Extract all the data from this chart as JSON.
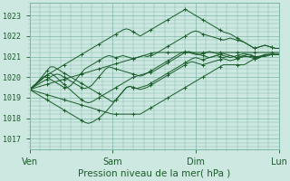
{
  "bg_color": "#cce8e0",
  "grid_color": "#7db5aa",
  "line_color": "#1a5c2a",
  "marker_color": "#1a5c2a",
  "xlabel": "Pression niveau de la mer( hPa )",
  "xlabel_fontsize": 7.5,
  "yticks": [
    1017,
    1018,
    1019,
    1020,
    1021,
    1022,
    1023
  ],
  "xtick_labels": [
    "Ven",
    "Sam",
    "Dim",
    "Lun"
  ],
  "xtick_positions": [
    0,
    1,
    2,
    3
  ],
  "ylim": [
    1016.5,
    1023.6
  ],
  "xlim": [
    0.0,
    3.0
  ],
  "n_points": 73,
  "series": [
    [
      1019.4,
      1019.45,
      1019.5,
      1019.55,
      1019.6,
      1019.65,
      1019.7,
      1019.75,
      1019.8,
      1019.85,
      1019.9,
      1019.95,
      1020.0,
      1020.05,
      1020.1,
      1020.15,
      1020.2,
      1020.25,
      1020.3,
      1020.35,
      1020.4,
      1020.45,
      1020.5,
      1020.55,
      1020.6,
      1020.65,
      1020.7,
      1020.75,
      1020.8,
      1020.85,
      1020.9,
      1020.95,
      1021.0,
      1021.05,
      1021.1,
      1021.15,
      1021.2,
      1021.2,
      1021.2,
      1021.2,
      1021.2,
      1021.2,
      1021.2,
      1021.2,
      1021.2,
      1021.2,
      1021.2,
      1021.2,
      1021.2,
      1021.2,
      1021.2,
      1021.2,
      1021.2,
      1021.2,
      1021.2,
      1021.2,
      1021.2,
      1021.2,
      1021.2,
      1021.2,
      1021.2,
      1021.2,
      1021.2,
      1021.2,
      1021.2,
      1021.2,
      1021.2,
      1021.2,
      1021.2,
      1021.2,
      1021.2,
      1021.2,
      1021.2
    ],
    [
      1019.4,
      1019.35,
      1019.3,
      1019.25,
      1019.2,
      1019.15,
      1019.1,
      1019.05,
      1019.0,
      1018.95,
      1018.9,
      1018.85,
      1018.8,
      1018.75,
      1018.7,
      1018.65,
      1018.6,
      1018.55,
      1018.5,
      1018.45,
      1018.4,
      1018.35,
      1018.3,
      1018.25,
      1018.2,
      1018.2,
      1018.2,
      1018.2,
      1018.2,
      1018.2,
      1018.2,
      1018.2,
      1018.2,
      1018.3,
      1018.4,
      1018.5,
      1018.6,
      1018.7,
      1018.8,
      1018.9,
      1019.0,
      1019.1,
      1019.2,
      1019.3,
      1019.4,
      1019.5,
      1019.6,
      1019.7,
      1019.8,
      1019.9,
      1020.0,
      1020.1,
      1020.2,
      1020.3,
      1020.4,
      1020.5,
      1020.6,
      1020.6,
      1020.6,
      1020.6,
      1020.6,
      1020.6,
      1020.6,
      1020.7,
      1020.8,
      1020.9,
      1021.0,
      1021.05,
      1021.1,
      1021.1,
      1021.1,
      1021.1,
      1021.1
    ],
    [
      1019.4,
      1019.5,
      1019.6,
      1019.7,
      1019.8,
      1019.9,
      1020.0,
      1020.1,
      1020.15,
      1020.1,
      1020.0,
      1019.9,
      1019.8,
      1019.7,
      1019.6,
      1019.5,
      1019.45,
      1019.5,
      1019.6,
      1019.8,
      1020.0,
      1020.2,
      1020.4,
      1020.5,
      1020.45,
      1020.4,
      1020.35,
      1020.3,
      1020.25,
      1020.2,
      1020.15,
      1020.1,
      1020.05,
      1020.1,
      1020.2,
      1020.3,
      1020.4,
      1020.5,
      1020.6,
      1020.7,
      1020.8,
      1020.9,
      1021.0,
      1021.1,
      1021.2,
      1021.25,
      1021.2,
      1021.15,
      1021.1,
      1021.1,
      1021.15,
      1021.2,
      1021.25,
      1021.2,
      1021.15,
      1021.1,
      1021.05,
      1021.0,
      1020.95,
      1021.0,
      1021.05,
      1021.1,
      1021.15,
      1021.1,
      1021.05,
      1021.0,
      1020.95,
      1021.0,
      1021.05,
      1021.1,
      1021.1,
      1021.1,
      1021.1
    ],
    [
      1019.4,
      1019.5,
      1019.65,
      1019.8,
      1019.95,
      1020.1,
      1020.2,
      1020.1,
      1019.95,
      1019.8,
      1019.65,
      1019.5,
      1019.35,
      1019.2,
      1019.05,
      1018.9,
      1018.8,
      1018.75,
      1018.8,
      1018.9,
      1019.0,
      1019.1,
      1019.2,
      1019.3,
      1019.4,
      1019.5,
      1019.6,
      1019.7,
      1019.8,
      1019.9,
      1020.0,
      1020.05,
      1020.1,
      1020.15,
      1020.2,
      1020.25,
      1020.3,
      1020.4,
      1020.5,
      1020.6,
      1020.7,
      1020.8,
      1020.9,
      1021.0,
      1021.1,
      1021.2,
      1021.25,
      1021.2,
      1021.15,
      1021.1,
      1021.05,
      1021.0,
      1020.95,
      1021.0,
      1021.05,
      1021.1,
      1021.15,
      1021.1,
      1021.05,
      1021.0,
      1020.95,
      1021.0,
      1021.05,
      1021.1,
      1021.1,
      1021.0,
      1020.9,
      1021.0,
      1021.1,
      1021.1,
      1021.1,
      1021.1,
      1021.1
    ],
    [
      1019.4,
      1019.3,
      1019.2,
      1019.1,
      1019.0,
      1018.9,
      1018.8,
      1018.7,
      1018.6,
      1018.5,
      1018.4,
      1018.3,
      1018.2,
      1018.1,
      1018.0,
      1017.9,
      1017.8,
      1017.75,
      1017.8,
      1017.9,
      1018.0,
      1018.15,
      1018.3,
      1018.5,
      1018.7,
      1018.9,
      1019.1,
      1019.3,
      1019.5,
      1019.55,
      1019.5,
      1019.45,
      1019.4,
      1019.45,
      1019.5,
      1019.6,
      1019.7,
      1019.8,
      1019.9,
      1020.0,
      1020.1,
      1020.2,
      1020.3,
      1020.4,
      1020.5,
      1020.6,
      1020.7,
      1020.75,
      1020.7,
      1020.65,
      1020.6,
      1020.65,
      1020.7,
      1020.75,
      1020.8,
      1020.85,
      1020.9,
      1020.85,
      1020.8,
      1020.85,
      1020.9,
      1020.95,
      1021.0,
      1021.0,
      1021.0,
      1021.0,
      1021.0,
      1021.0,
      1021.0,
      1021.05,
      1021.1,
      1021.1,
      1021.1
    ],
    [
      1019.4,
      1019.5,
      1019.7,
      1019.9,
      1020.1,
      1020.3,
      1020.5,
      1020.5,
      1020.4,
      1020.3,
      1020.2,
      1020.1,
      1020.0,
      1019.9,
      1019.8,
      1019.7,
      1019.6,
      1019.5,
      1019.4,
      1019.3,
      1019.2,
      1019.1,
      1019.0,
      1018.9,
      1018.8,
      1018.9,
      1019.1,
      1019.3,
      1019.5,
      1019.55,
      1019.5,
      1019.45,
      1019.5,
      1019.55,
      1019.6,
      1019.7,
      1019.8,
      1019.9,
      1020.0,
      1020.1,
      1020.2,
      1020.3,
      1020.4,
      1020.5,
      1020.6,
      1020.7,
      1020.8,
      1020.9,
      1020.95,
      1020.9,
      1020.85,
      1020.9,
      1020.95,
      1021.0,
      1021.05,
      1021.0,
      1020.95,
      1021.0,
      1021.05,
      1021.0,
      1020.95,
      1021.0,
      1021.05,
      1021.0,
      1020.95,
      1020.9,
      1020.95,
      1021.0,
      1021.05,
      1021.1,
      1021.1,
      1021.1,
      1021.1
    ],
    [
      1019.4,
      1019.55,
      1019.7,
      1019.85,
      1020.0,
      1020.1,
      1020.2,
      1020.3,
      1020.4,
      1020.5,
      1020.6,
      1020.7,
      1020.8,
      1020.9,
      1021.0,
      1021.1,
      1021.2,
      1021.3,
      1021.4,
      1021.5,
      1021.6,
      1021.7,
      1021.8,
      1021.9,
      1022.0,
      1022.1,
      1022.2,
      1022.3,
      1022.35,
      1022.3,
      1022.2,
      1022.1,
      1022.0,
      1022.1,
      1022.2,
      1022.3,
      1022.4,
      1022.5,
      1022.6,
      1022.7,
      1022.8,
      1022.9,
      1023.0,
      1023.1,
      1023.2,
      1023.3,
      1023.2,
      1023.1,
      1023.0,
      1022.9,
      1022.8,
      1022.7,
      1022.6,
      1022.5,
      1022.4,
      1022.3,
      1022.2,
      1022.15,
      1022.1,
      1022.0,
      1021.9,
      1021.8,
      1021.7,
      1021.6,
      1021.5,
      1021.4,
      1021.45,
      1021.5,
      1021.55,
      1021.5,
      1021.45,
      1021.4,
      1021.4
    ],
    [
      1019.4,
      1019.55,
      1019.7,
      1019.85,
      1020.0,
      1020.0,
      1019.9,
      1019.8,
      1019.7,
      1019.6,
      1019.5,
      1019.5,
      1019.6,
      1019.8,
      1020.0,
      1020.2,
      1020.4,
      1020.5,
      1020.6,
      1020.7,
      1020.8,
      1020.9,
      1021.0,
      1021.05,
      1021.0,
      1020.95,
      1021.0,
      1021.05,
      1021.0,
      1020.95,
      1020.9,
      1020.95,
      1021.0,
      1021.05,
      1021.0,
      1021.05,
      1021.1,
      1021.2,
      1021.3,
      1021.4,
      1021.5,
      1021.6,
      1021.7,
      1021.8,
      1021.9,
      1022.0,
      1022.1,
      1022.2,
      1022.25,
      1022.2,
      1022.1,
      1022.05,
      1022.0,
      1021.95,
      1021.9,
      1021.85,
      1021.8,
      1021.85,
      1021.9,
      1021.85,
      1021.8,
      1021.75,
      1021.7,
      1021.6,
      1021.5,
      1021.4,
      1021.45,
      1021.5,
      1021.55,
      1021.5,
      1021.45,
      1021.4,
      1021.4
    ]
  ]
}
